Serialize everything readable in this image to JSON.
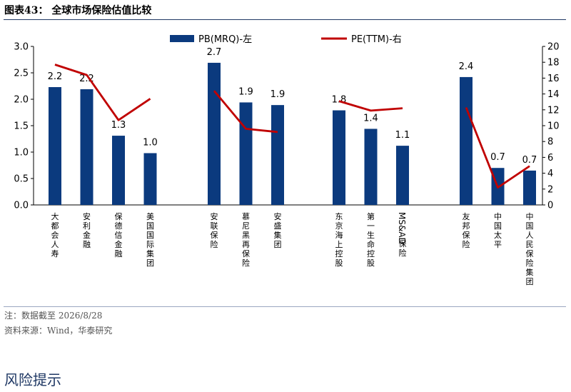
{
  "header": {
    "title": "图表43：  全球市场保险估值比较"
  },
  "footer": {
    "note": "注：数据截至 2026/8/28",
    "source": "资料来源：Wind，华泰研究"
  },
  "section_heading": "风险提示",
  "colors": {
    "bar": "#0b3a7e",
    "line": "#c00000",
    "rule": "#1f3864"
  },
  "chart_data": {
    "type": "bar",
    "categories": [
      "大都会人寿",
      "安利金融",
      "保德信金融",
      "美国国际集团",
      "安联保险",
      "慕尼黑再保险",
      "安盛集团",
      "东京海上控股",
      "第一生命控股",
      "MS&AD保险",
      "友邦保险",
      "中国太平",
      "中国人民保险集团"
    ],
    "groups": [
      [
        0,
        1,
        2,
        3
      ],
      [
        4,
        5,
        6
      ],
      [
        7,
        8,
        9
      ],
      [
        10,
        11,
        12
      ]
    ],
    "series": [
      {
        "name": "PB(MRQ)-左",
        "type": "bar",
        "axis": "left",
        "values": [
          2.2,
          2.2,
          1.3,
          1.0,
          2.7,
          1.9,
          1.9,
          1.8,
          1.4,
          1.1,
          2.4,
          0.7,
          0.7
        ],
        "value_labels": [
          "2.2",
          "2.2",
          "1.3",
          "1.0",
          "2.7",
          "1.9",
          "1.9",
          "1.8",
          "1.4",
          "1.1",
          "2.4",
          "0.7",
          "0.7"
        ],
        "plot_values": [
          2.23,
          2.19,
          1.31,
          0.98,
          2.69,
          1.94,
          1.89,
          1.79,
          1.44,
          1.12,
          2.42,
          0.7,
          0.65
        ]
      },
      {
        "name": "PE(TTM)-右",
        "type": "line",
        "axis": "right",
        "values": [
          17.7,
          16.4,
          10.7,
          13.4,
          14.4,
          9.6,
          9.2,
          13.1,
          11.9,
          12.2,
          12.3,
          2.2,
          4.9
        ]
      }
    ],
    "ylim_left": [
      0,
      3.0
    ],
    "yticks_left": [
      "0.0",
      "0.5",
      "1.0",
      "1.5",
      "2.0",
      "2.5",
      "3.0"
    ],
    "ylim_right": [
      0,
      20
    ],
    "yticks_right": [
      "0",
      "2",
      "4",
      "6",
      "8",
      "10",
      "12",
      "14",
      "16",
      "18",
      "20"
    ],
    "legend": "top",
    "grid": false
  }
}
